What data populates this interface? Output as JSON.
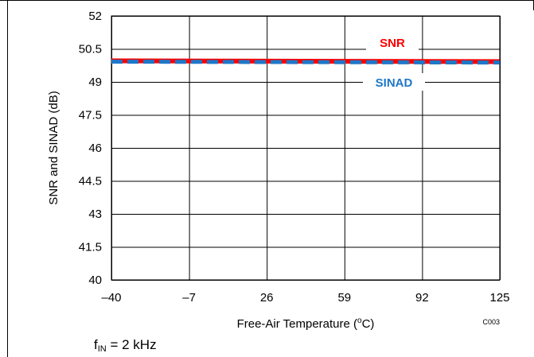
{
  "chart_data": {
    "type": "line",
    "xlabel": "Free-Air Temperature (",
    "xlabel_sup": "o",
    "xlabel_end": "C)",
    "ylabel": "SNR and SINAD (dB)",
    "x_ticks": [
      "–40",
      "–7",
      "26",
      "59",
      "92",
      "125"
    ],
    "x_tick_values": [
      -40,
      -7,
      26,
      59,
      92,
      125
    ],
    "y_ticks": [
      "52",
      "50.5",
      "49",
      "47.5",
      "46",
      "44.5",
      "43",
      "41.5",
      "40"
    ],
    "y_tick_values": [
      52,
      50.5,
      49,
      47.5,
      46,
      44.5,
      43,
      41.5,
      40
    ],
    "xlim": [
      -40,
      125
    ],
    "ylim": [
      40,
      52
    ],
    "grid": true,
    "series": [
      {
        "name": "SNR",
        "color": "#ff0000",
        "style": "solid",
        "x": [
          -40,
          125
        ],
        "y": [
          49.96,
          49.92
        ]
      },
      {
        "name": "SINAD",
        "color": "#1f77c8",
        "style": "dashed",
        "x": [
          -40,
          125
        ],
        "y": [
          49.92,
          49.88
        ]
      }
    ],
    "code": "C003"
  },
  "note": {
    "f": "f",
    "sub": "IN",
    "rest": " = 2 kHz"
  }
}
